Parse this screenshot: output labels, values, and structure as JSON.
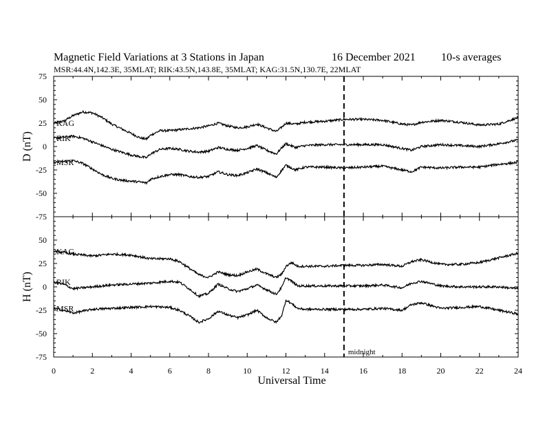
{
  "header": {
    "title": "Magnetic Field Variations at 3 Stations in Japan",
    "date": "16 December 2021",
    "averaging": "10-s averages",
    "stations": "MSR:44.4N,142.3E, 35MLAT;  RIK:43.5N,143.8E, 35MLAT;  KAG:31.5N,130.7E, 22MLAT"
  },
  "chart_data": [
    {
      "type": "line",
      "panel": "top",
      "ylabel": "D (nT)",
      "xlabel": "",
      "xlim": [
        0,
        24
      ],
      "ylim": [
        -75,
        75
      ],
      "yticks": [
        "75",
        "50",
        "25",
        "0",
        "-25",
        "-50",
        "-75"
      ],
      "grid": false,
      "series": [
        {
          "name": "KAG",
          "color": "#000000",
          "x": [
            0,
            0.5,
            1,
            1.5,
            2,
            2.5,
            3,
            3.5,
            4,
            4.5,
            4.8,
            5,
            5.5,
            6,
            6.5,
            7,
            7.5,
            8,
            8.5,
            9,
            9.5,
            10,
            10.5,
            11,
            11.5,
            11.8,
            12,
            12.5,
            13,
            14,
            15,
            16,
            17,
            18,
            18.5,
            19,
            20,
            21,
            22,
            23,
            24
          ],
          "y": [
            25,
            27,
            33,
            37,
            36,
            31,
            24,
            19,
            14,
            9,
            8,
            12,
            17,
            17,
            18,
            19,
            20,
            22,
            25,
            22,
            20,
            21,
            24,
            20,
            16,
            21,
            25,
            24,
            26,
            27,
            29,
            29,
            28,
            24,
            23,
            26,
            28,
            26,
            23,
            24,
            31
          ]
        },
        {
          "name": "RIK",
          "color": "#000000",
          "x": [
            0,
            0.5,
            1,
            1.5,
            2,
            2.5,
            3,
            3.5,
            4,
            4.5,
            4.8,
            5,
            5.5,
            6,
            6.5,
            7,
            7.5,
            8,
            8.5,
            9,
            9.5,
            10,
            10.5,
            11,
            11.5,
            11.8,
            12,
            12.5,
            13,
            14,
            15,
            16,
            17,
            18,
            18.5,
            19,
            20,
            21,
            22,
            23,
            24
          ],
          "y": [
            9,
            10,
            11,
            9,
            5,
            1,
            -3,
            -6,
            -9,
            -11,
            -12,
            -8,
            -3,
            -2,
            -3,
            -5,
            -6,
            -5,
            -1,
            -3,
            -4,
            -2,
            1,
            -4,
            -8,
            -1,
            3,
            -1,
            1,
            2,
            2,
            2,
            2,
            -2,
            -4,
            0,
            2,
            1,
            0,
            3,
            7
          ]
        },
        {
          "name": "MSR",
          "color": "#000000",
          "x": [
            0,
            0.5,
            1,
            1.5,
            2,
            2.5,
            3,
            3.5,
            4,
            4.5,
            4.8,
            5,
            5.5,
            6,
            6.5,
            7,
            7.5,
            8,
            8.5,
            9,
            9.5,
            10,
            10.5,
            11,
            11.5,
            11.8,
            12,
            12.5,
            13,
            14,
            15,
            16,
            17,
            18,
            18.5,
            19,
            20,
            21,
            22,
            23,
            24
          ],
          "y": [
            -17,
            -16,
            -15,
            -18,
            -24,
            -30,
            -34,
            -36,
            -37,
            -38,
            -39,
            -35,
            -32,
            -30,
            -30,
            -32,
            -33,
            -32,
            -27,
            -30,
            -31,
            -28,
            -24,
            -28,
            -33,
            -25,
            -20,
            -25,
            -22,
            -22,
            -23,
            -22,
            -21,
            -25,
            -27,
            -22,
            -23,
            -22,
            -22,
            -19,
            -17
          ]
        }
      ]
    },
    {
      "type": "line",
      "panel": "bottom",
      "ylabel": "H (nT)",
      "xlabel": "Universal Time",
      "xlim": [
        0,
        24
      ],
      "ylim": [
        -75,
        75
      ],
      "yticks": [
        "",
        "50",
        "25",
        "0",
        "-25",
        "-50",
        "-75"
      ],
      "xticks": [
        "0",
        "2",
        "4",
        "6",
        "8",
        "10",
        "12",
        "14",
        "16",
        "18",
        "20",
        "22",
        "24"
      ],
      "grid": false,
      "annotations": [
        {
          "x": 15,
          "text": "midnight",
          "style": "dashed vertical line"
        }
      ],
      "series": [
        {
          "name": "KAG",
          "color": "#000000",
          "x": [
            0,
            0.5,
            1,
            2,
            3,
            4,
            5,
            6,
            6.5,
            7,
            7.5,
            8,
            8.5,
            9,
            9.5,
            10,
            10.5,
            11,
            11.5,
            11.8,
            12,
            12.3,
            12.6,
            13,
            14,
            15,
            16,
            17,
            18,
            18.5,
            19,
            20,
            21,
            22,
            23,
            24
          ],
          "y": [
            38,
            37,
            35,
            33,
            35,
            34,
            30,
            30,
            27,
            20,
            13,
            10,
            16,
            13,
            12,
            16,
            19,
            14,
            10,
            14,
            22,
            26,
            22,
            22,
            22,
            23,
            23,
            24,
            22,
            27,
            29,
            24,
            24,
            26,
            31,
            36
          ]
        },
        {
          "name": "RIK",
          "color": "#000000",
          "x": [
            0,
            0.5,
            1,
            2,
            3,
            4,
            5,
            6,
            6.5,
            7,
            7.5,
            8,
            8.5,
            9,
            9.5,
            10,
            10.5,
            11,
            11.5,
            11.8,
            12,
            12.3,
            12.6,
            13,
            14,
            15,
            16,
            17,
            18,
            18.5,
            19,
            20,
            21,
            22,
            23,
            24
          ],
          "y": [
            5,
            3,
            -2,
            0,
            2,
            3,
            4,
            6,
            5,
            -2,
            -10,
            -7,
            3,
            -2,
            -5,
            -2,
            2,
            -3,
            -8,
            0,
            10,
            6,
            1,
            1,
            1,
            1,
            1,
            2,
            -1,
            4,
            6,
            1,
            0,
            0,
            0,
            -2
          ]
        },
        {
          "name": "MSR",
          "color": "#000000",
          "x": [
            0,
            0.5,
            1,
            2,
            3,
            4,
            5,
            6,
            6.5,
            7,
            7.5,
            8,
            8.5,
            9,
            9.5,
            10,
            10.5,
            11,
            11.5,
            11.8,
            12,
            12.3,
            12.6,
            13,
            14,
            15,
            16,
            17,
            18,
            18.5,
            19,
            20,
            21,
            22,
            23,
            24
          ],
          "y": [
            -23,
            -25,
            -28,
            -24,
            -23,
            -22,
            -21,
            -22,
            -25,
            -31,
            -38,
            -34,
            -26,
            -30,
            -33,
            -30,
            -25,
            -33,
            -38,
            -30,
            -14,
            -18,
            -23,
            -24,
            -24,
            -24,
            -24,
            -23,
            -25,
            -19,
            -17,
            -23,
            -22,
            -21,
            -25,
            -29
          ]
        }
      ]
    }
  ]
}
